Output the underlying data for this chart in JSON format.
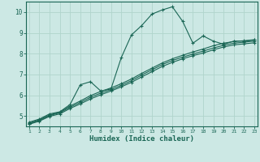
{
  "title": "",
  "xlabel": "Humidex (Indice chaleur)",
  "bg_color": "#cce8e4",
  "grid_color": "#b0d4cc",
  "line_color": "#1a6655",
  "xmin": 1,
  "xmax": 23,
  "ymin": 4.5,
  "ymax": 10.5,
  "yticks": [
    5,
    6,
    7,
    8,
    9,
    10
  ],
  "xticks": [
    1,
    2,
    3,
    4,
    5,
    6,
    7,
    8,
    9,
    10,
    11,
    12,
    13,
    14,
    15,
    16,
    17,
    18,
    19,
    20,
    21,
    22,
    23
  ],
  "series": [
    [
      4.7,
      4.85,
      5.1,
      5.2,
      5.55,
      6.5,
      6.65,
      6.2,
      6.3,
      7.8,
      8.9,
      9.35,
      9.9,
      10.1,
      10.25,
      9.55,
      8.5,
      8.85,
      8.6,
      8.45,
      8.6,
      8.6,
      8.65
    ],
    [
      4.65,
      4.82,
      5.05,
      5.18,
      5.48,
      5.72,
      5.98,
      6.18,
      6.35,
      6.55,
      6.78,
      7.05,
      7.3,
      7.55,
      7.75,
      7.92,
      8.08,
      8.22,
      8.38,
      8.5,
      8.58,
      8.62,
      8.67
    ],
    [
      4.62,
      4.78,
      5.02,
      5.15,
      5.42,
      5.65,
      5.9,
      6.1,
      6.27,
      6.47,
      6.7,
      6.97,
      7.22,
      7.47,
      7.67,
      7.83,
      7.98,
      8.12,
      8.27,
      8.4,
      8.5,
      8.55,
      8.6
    ],
    [
      4.6,
      4.75,
      4.98,
      5.1,
      5.36,
      5.58,
      5.82,
      6.02,
      6.2,
      6.4,
      6.62,
      6.88,
      7.13,
      7.38,
      7.58,
      7.75,
      7.9,
      8.03,
      8.18,
      8.32,
      8.42,
      8.47,
      8.52
    ]
  ]
}
